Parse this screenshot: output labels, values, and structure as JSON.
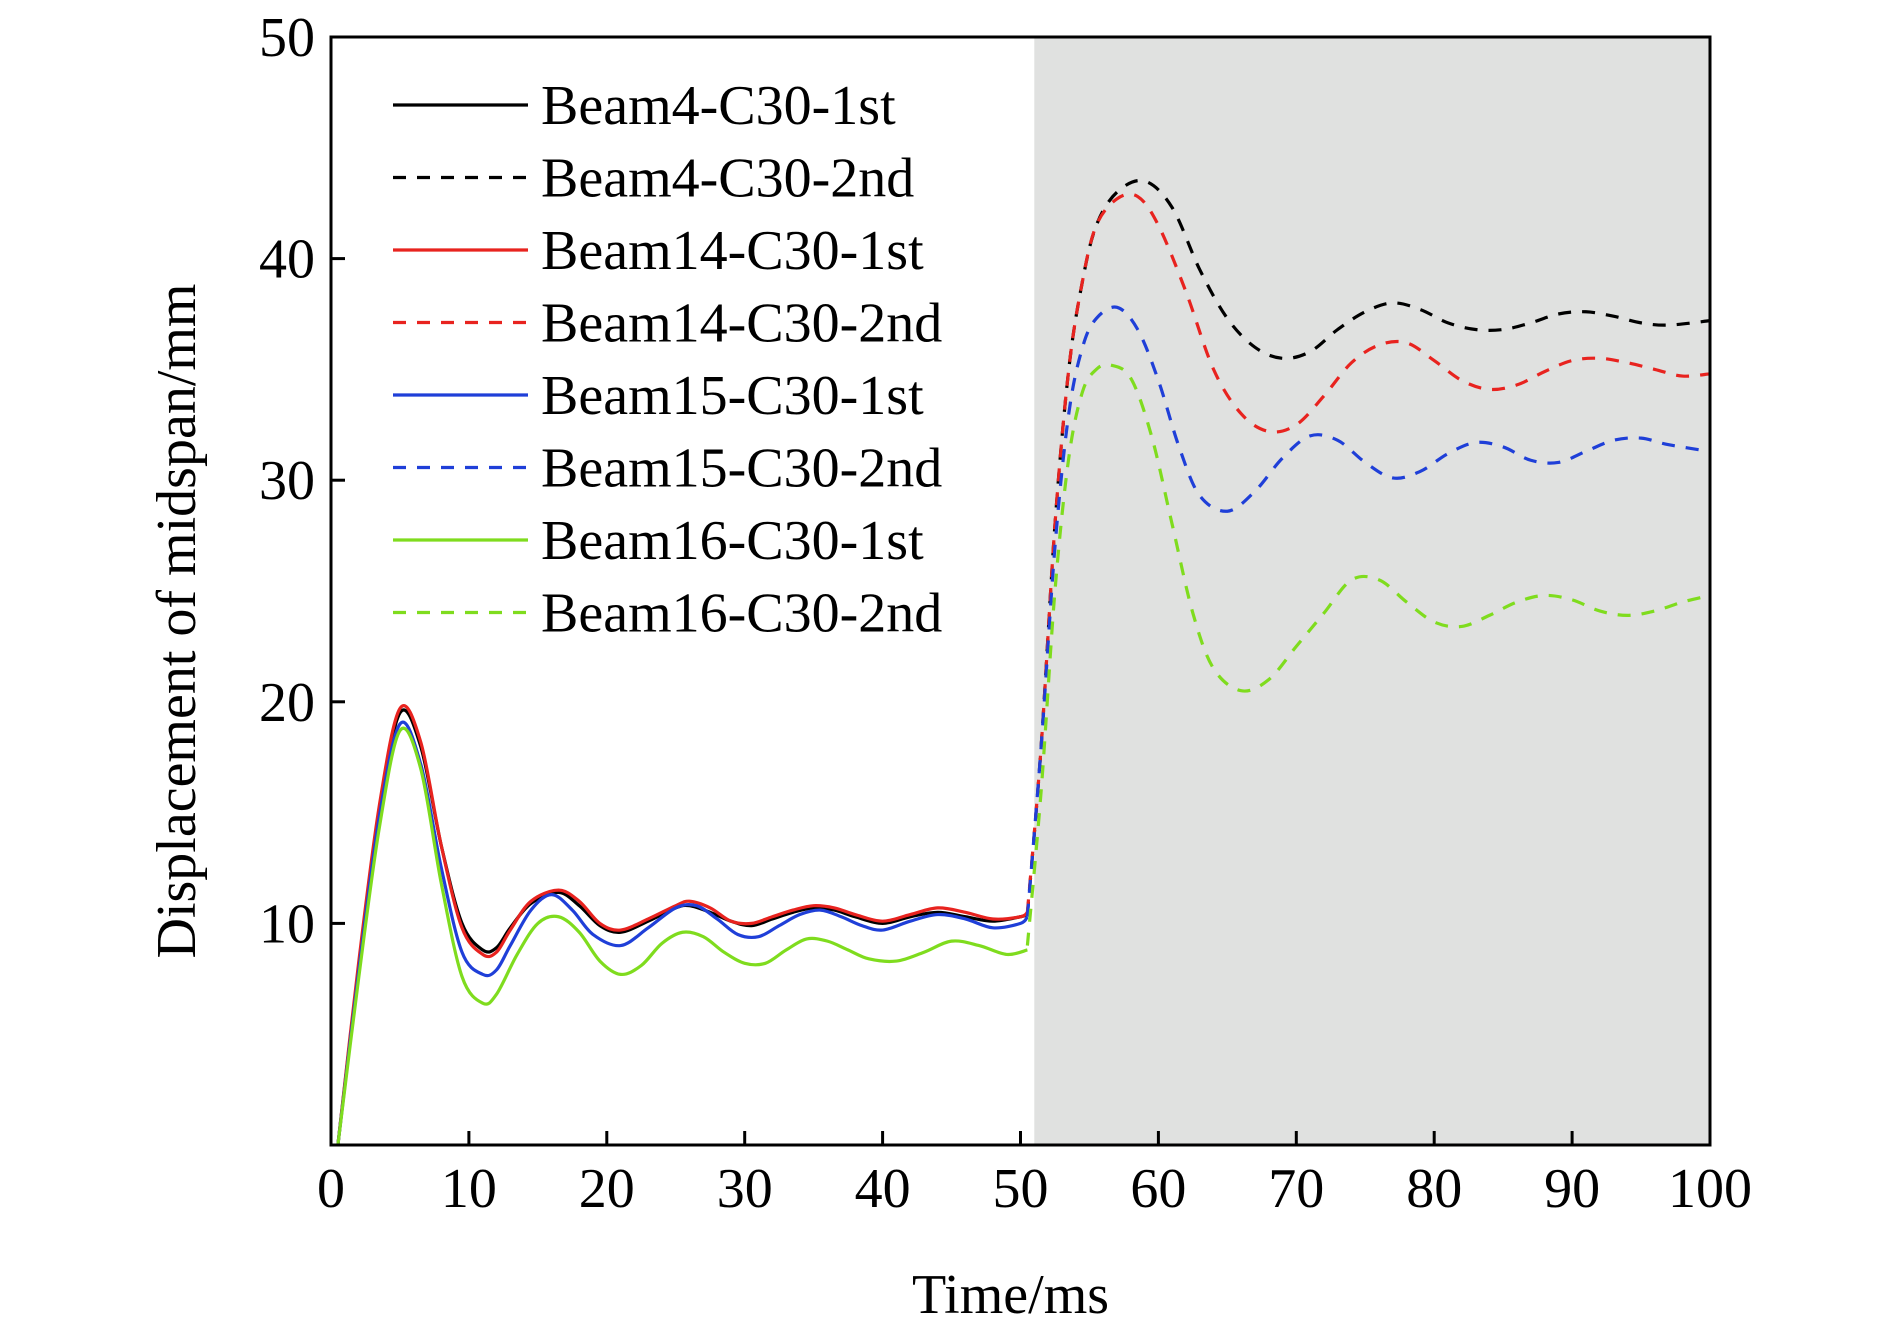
{
  "chart_data": {
    "type": "line",
    "title": "",
    "xlabel": "Time/ms",
    "ylabel": "Displacement of midspan/mm",
    "xlim": [
      0,
      100
    ],
    "ylim": [
      0,
      50
    ],
    "xticks": [
      0,
      10,
      20,
      30,
      40,
      50,
      60,
      70,
      80,
      90,
      100
    ],
    "yticks": [
      10,
      20,
      30,
      40,
      50
    ],
    "xtick_labels": [
      "0",
      "10",
      "20",
      "30",
      "40",
      "50",
      "60",
      "70",
      "80",
      "90",
      "100"
    ],
    "ytick_labels": [
      "10",
      "20",
      "30",
      "40",
      "50"
    ],
    "grid": false,
    "legend_position": "top-left",
    "shaded_region": {
      "x_start": 51,
      "x_end": 100,
      "color": "#e0e1e0"
    },
    "series": [
      {
        "name": "Beam4-C30-1st",
        "color": "#000000",
        "dash": "solid",
        "x": [
          0.5,
          2,
          3.5,
          5,
          6.5,
          8,
          9.5,
          11,
          12,
          13,
          14.5,
          16.5,
          18,
          19.5,
          21,
          23,
          25,
          26,
          27.5,
          29,
          30.5,
          32,
          33.5,
          35,
          36.5,
          38,
          40,
          42,
          44,
          46,
          48,
          50,
          50.5
        ],
        "y": [
          0,
          8,
          15,
          19.5,
          18,
          13.5,
          10,
          8.8,
          8.9,
          9.8,
          10.9,
          11.4,
          10.8,
          9.9,
          9.6,
          10.1,
          10.7,
          10.8,
          10.5,
          10.1,
          9.9,
          10.2,
          10.5,
          10.7,
          10.6,
          10.3,
          10.0,
          10.3,
          10.5,
          10.3,
          10.1,
          10.3,
          10.4
        ]
      },
      {
        "name": "Beam4-C30-2nd",
        "color": "#000000",
        "dash": "dashed",
        "x": [
          50.5,
          51.5,
          52.5,
          53.5,
          54.5,
          55.5,
          57,
          59,
          61,
          63,
          65,
          67,
          69,
          71,
          73,
          75,
          77,
          79,
          81,
          83,
          85,
          87,
          89,
          91,
          93,
          95,
          97,
          100
        ],
        "y": [
          10.4,
          18,
          28,
          35,
          39,
          41.5,
          43,
          43.5,
          42.3,
          39.5,
          37.3,
          36,
          35.5,
          35.8,
          36.8,
          37.6,
          38,
          37.7,
          37.1,
          36.8,
          36.8,
          37.1,
          37.5,
          37.6,
          37.4,
          37.1,
          37,
          37.2
        ]
      },
      {
        "name": "Beam14-C30-1st",
        "color": "#e8231f",
        "dash": "solid",
        "x": [
          0.5,
          2,
          3.5,
          5,
          6.5,
          8,
          9.5,
          11,
          12,
          13,
          14.5,
          16.5,
          18,
          19.5,
          21,
          23,
          25,
          26,
          27.5,
          29,
          30.5,
          32,
          33.5,
          35,
          36.5,
          38,
          40,
          42,
          44,
          46,
          48,
          50,
          50.5
        ],
        "y": [
          0,
          8.2,
          15.3,
          19.7,
          18.2,
          13.5,
          9.8,
          8.6,
          8.7,
          9.7,
          11,
          11.5,
          11,
          10,
          9.7,
          10.2,
          10.8,
          11,
          10.7,
          10.1,
          10,
          10.3,
          10.6,
          10.8,
          10.7,
          10.4,
          10.1,
          10.4,
          10.7,
          10.5,
          10.2,
          10.3,
          10.5
        ]
      },
      {
        "name": "Beam14-C30-2nd",
        "color": "#e8231f",
        "dash": "dashed",
        "x": [
          50.5,
          51.5,
          52.5,
          53.5,
          54.5,
          55.5,
          57,
          58.5,
          60,
          62,
          64,
          66,
          68,
          70,
          72,
          74,
          76,
          78,
          80,
          82,
          84,
          86,
          88,
          90,
          92,
          94,
          96,
          98,
          100
        ],
        "y": [
          10.5,
          18,
          28,
          35,
          39,
          41.5,
          42.7,
          42.8,
          41.5,
          38.5,
          35,
          33,
          32.2,
          32.5,
          33.8,
          35.3,
          36.1,
          36.2,
          35.4,
          34.5,
          34.1,
          34.3,
          34.9,
          35.4,
          35.5,
          35.3,
          35,
          34.7,
          34.8
        ]
      },
      {
        "name": "Beam15-C30-1st",
        "color": "#1f3fd8",
        "dash": "solid",
        "x": [
          0.5,
          2,
          3.5,
          5,
          6.5,
          8,
          9.5,
          11,
          12,
          13,
          14.5,
          16,
          17.5,
          19,
          21,
          23,
          25,
          26.5,
          28,
          29.5,
          31,
          32.5,
          34,
          35.5,
          37,
          38.5,
          40,
          42,
          44,
          46,
          48,
          50,
          50.5
        ],
        "y": [
          0,
          7.8,
          14.8,
          19,
          17.2,
          12.5,
          8.7,
          7.7,
          7.9,
          9,
          10.6,
          11.3,
          10.6,
          9.5,
          9.0,
          9.8,
          10.7,
          10.8,
          10.2,
          9.5,
          9.4,
          9.9,
          10.4,
          10.6,
          10.3,
          9.9,
          9.7,
          10.1,
          10.4,
          10.2,
          9.8,
          10.0,
          10.3
        ]
      },
      {
        "name": "Beam15-C30-2nd",
        "color": "#1f3fd8",
        "dash": "dashed",
        "x": [
          50.5,
          51.5,
          52.5,
          53.5,
          54.5,
          55.5,
          57,
          58.5,
          60,
          61.5,
          63,
          65,
          67,
          69,
          71,
          73,
          75,
          77,
          79,
          81,
          83,
          85,
          87,
          89,
          91,
          93,
          95,
          97,
          100
        ],
        "y": [
          10.3,
          18,
          27,
          33,
          36,
          37.3,
          37.8,
          36.8,
          34.5,
          31.5,
          29.3,
          28.6,
          29.5,
          31.0,
          32.0,
          31.8,
          30.8,
          30.1,
          30.4,
          31.2,
          31.7,
          31.5,
          30.9,
          30.8,
          31.3,
          31.8,
          31.9,
          31.6,
          31.3
        ]
      },
      {
        "name": "Beam16-C30-1st",
        "color": "#7fdc1e",
        "dash": "solid",
        "x": [
          0.5,
          2,
          3.5,
          5,
          6.5,
          8,
          9.5,
          11,
          12,
          13.5,
          15,
          16.5,
          18,
          19.5,
          21,
          22.5,
          24,
          25.5,
          27,
          28.5,
          30,
          31.5,
          33,
          34.5,
          36,
          37.5,
          39,
          41,
          43,
          45,
          47,
          49,
          50.5
        ],
        "y": [
          0,
          7.5,
          14.3,
          18.7,
          17,
          11.8,
          7.6,
          6.4,
          6.8,
          8.6,
          10,
          10.3,
          9.6,
          8.3,
          7.7,
          8.1,
          9.1,
          9.6,
          9.4,
          8.7,
          8.2,
          8.2,
          8.8,
          9.3,
          9.2,
          8.8,
          8.4,
          8.3,
          8.7,
          9.2,
          9.0,
          8.6,
          8.8
        ]
      },
      {
        "name": "Beam16-C30-2nd",
        "color": "#7fdc1e",
        "dash": "dashed",
        "x": [
          50.5,
          51.5,
          52.5,
          53.5,
          54.5,
          55.5,
          56.5,
          58,
          59.5,
          61,
          62.5,
          64,
          66,
          68,
          70,
          72,
          74,
          76,
          78,
          80,
          82,
          84,
          86,
          88,
          90,
          92,
          94,
          96,
          98,
          100
        ],
        "y": [
          9.0,
          16,
          25,
          31,
          34,
          35,
          35.2,
          34.6,
          32,
          28,
          24,
          21.5,
          20.5,
          21,
          22.5,
          24,
          25.5,
          25.5,
          24.5,
          23.6,
          23.4,
          23.9,
          24.5,
          24.8,
          24.6,
          24.1,
          23.9,
          24.1,
          24.5,
          24.8
        ]
      }
    ]
  }
}
